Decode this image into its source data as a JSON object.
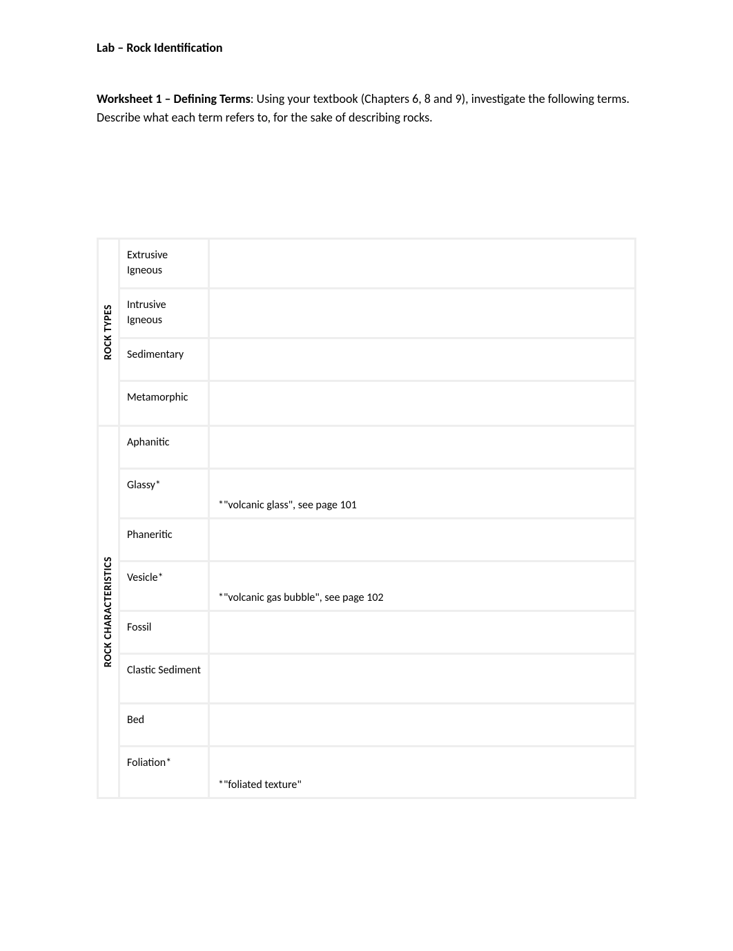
{
  "header_title": "Lab – Rock Identification",
  "instructions": {
    "bold_prefix": "Worksheet 1 – De",
    "fi": "fi",
    "bold_suffix": "ning Terms",
    "rest": ": Using your textbook (Chapters 6, 8 and 9), investigate the following terms. Describe what each term refers to, for the sake of describing rocks."
  },
  "sections": [
    {
      "label": "ROCK TYPES",
      "rows": [
        {
          "term": "Extrusive Igneous",
          "desc": ""
        },
        {
          "term": "Intrusive Igneous",
          "desc": ""
        },
        {
          "term": "Sedimentary",
          "desc": ""
        },
        {
          "term": "Metamorphic",
          "desc": ""
        }
      ]
    },
    {
      "label": "ROCK CHARACTERISTICS",
      "rows": [
        {
          "term": "Aphanitic",
          "desc": ""
        },
        {
          "term": "Glassy*",
          "desc": "*\"volcanic glass\", see page 101"
        },
        {
          "term": "Phaneritic",
          "desc": ""
        },
        {
          "term": "Vesicle*",
          "desc": "*\"volcanic gas bubble\", see page 102"
        },
        {
          "term": "Fossil",
          "desc": ""
        },
        {
          "term": "Clastic Sediment",
          "desc": ""
        },
        {
          "term": "Bed",
          "desc": ""
        },
        {
          "term": "Foliation*",
          "desc": "*\"foliated texture\""
        }
      ]
    }
  ],
  "colors": {
    "text": "#000000",
    "background": "#ffffff",
    "border": "#eeeeee"
  },
  "fonts": {
    "body_size": 18,
    "table_size": 16,
    "section_label_size": 15
  }
}
